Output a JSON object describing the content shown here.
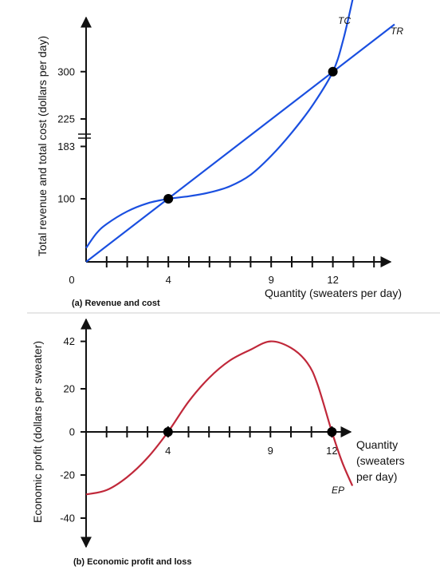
{
  "chart_data": [
    {
      "type": "line",
      "caption": "(a) Revenue and cost",
      "ylabel": "Total revenue and total cost (dollars per day)",
      "xlabel": "Quantity (sweaters per day)",
      "xlim": [
        0,
        15
      ],
      "ylim": [
        0,
        340
      ],
      "x_origin_label": "0",
      "x_tick_labels": [
        {
          "x": 4,
          "label": "4"
        },
        {
          "x": 9,
          "label": "9"
        },
        {
          "x": 12,
          "label": "12"
        }
      ],
      "y_tick_labels": [
        {
          "y": 100,
          "label": "100"
        },
        {
          "y": 183,
          "label": "183"
        },
        {
          "y": 225,
          "label": "225"
        },
        {
          "y": 300,
          "label": "300"
        }
      ],
      "axis_break": "between 183 and 225",
      "series": [
        {
          "name": "TC",
          "color": "#1a4fe0",
          "points": [
            [
              0,
              22
            ],
            [
              0.5,
              45
            ],
            [
              1,
              60
            ],
            [
              2,
              80
            ],
            [
              3,
              93
            ],
            [
              4,
              100
            ],
            [
              5,
              104
            ],
            [
              6,
              110
            ],
            [
              7,
              120
            ],
            [
              8,
              138
            ],
            [
              9,
              168
            ],
            [
              10,
              204
            ],
            [
              11,
              246
            ],
            [
              12,
              300
            ],
            [
              12.5,
              350
            ],
            [
              13,
              420
            ]
          ]
        },
        {
          "name": "TR",
          "color": "#1a4fe0",
          "points": [
            [
              0,
              0
            ],
            [
              15,
              375
            ]
          ]
        }
      ],
      "highlight_points": [
        [
          4,
          100
        ],
        [
          12,
          300
        ]
      ]
    },
    {
      "type": "line",
      "caption": "(b) Economic profit and loss",
      "ylabel": "Economic profit (dollars per sweater)",
      "xlabel": "Quantity (sweaters per day)",
      "xlabel_lines": [
        "Quantity",
        "(sweaters",
        "per day)"
      ],
      "xlim": [
        0,
        14
      ],
      "ylim": [
        -48,
        48
      ],
      "y_tick_labels": [
        {
          "y": 42,
          "label": "42"
        },
        {
          "y": 20,
          "label": "20"
        },
        {
          "y": 0,
          "label": "0"
        },
        {
          "y": -20,
          "label": "-20"
        },
        {
          "y": -40,
          "label": "-40"
        }
      ],
      "x_tick_labels": [
        {
          "x": 4,
          "label": "4"
        },
        {
          "x": 9,
          "label": "9"
        },
        {
          "x": 12,
          "label": "12"
        }
      ],
      "series": [
        {
          "name": "EP",
          "color": "#c0283a",
          "points": [
            [
              0,
              -29
            ],
            [
              1,
              -27
            ],
            [
              2,
              -21
            ],
            [
              3,
              -12
            ],
            [
              4,
              0
            ],
            [
              5,
              14
            ],
            [
              6,
              25
            ],
            [
              7,
              33
            ],
            [
              8,
              38
            ],
            [
              9,
              42
            ],
            [
              10,
              39
            ],
            [
              10.8,
              32
            ],
            [
              11.3,
              22
            ],
            [
              12,
              0
            ],
            [
              12.5,
              -14
            ],
            [
              13,
              -25
            ]
          ]
        }
      ],
      "highlight_points": [
        [
          4,
          0
        ],
        [
          12,
          0
        ]
      ]
    }
  ]
}
